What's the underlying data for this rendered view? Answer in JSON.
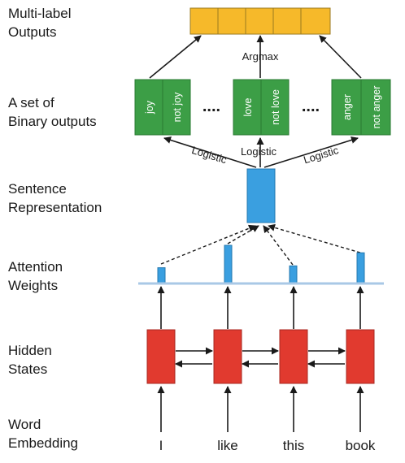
{
  "layer_labels": {
    "multi_label_1": "Multi-label",
    "multi_label_2": "Outputs",
    "binary_1": "A set of",
    "binary_2": "Binary outputs",
    "sentence_1": "Sentence",
    "sentence_2": "Representation",
    "attention_1": "Attention",
    "attention_2": "Weights",
    "hidden_1": "Hidden",
    "hidden_2": "States",
    "word_1": "Word",
    "word_2": "Embedding"
  },
  "binary_groups": [
    {
      "pos": "joy",
      "neg": "not joy"
    },
    {
      "pos": "love",
      "neg": "not love"
    },
    {
      "pos": "anger",
      "neg": "not anger"
    }
  ],
  "ellipsis": "....",
  "edge_labels": {
    "argmax": "Argmax",
    "logistic": "Logistic"
  },
  "attention_weights": [
    0.4,
    1.0,
    0.45,
    0.8
  ],
  "words": [
    "I",
    "like",
    "this",
    "book"
  ],
  "colors": {
    "output_cells": "#f6b92a",
    "binary_boxes": "#3c9e46",
    "sentence_vector": "#3a9fe0",
    "attention_bars": "#3a9fe0",
    "attention_baseline": "#a9c8e6",
    "hidden_states": "#e13a2f",
    "arrows": "#1a1a1a"
  }
}
